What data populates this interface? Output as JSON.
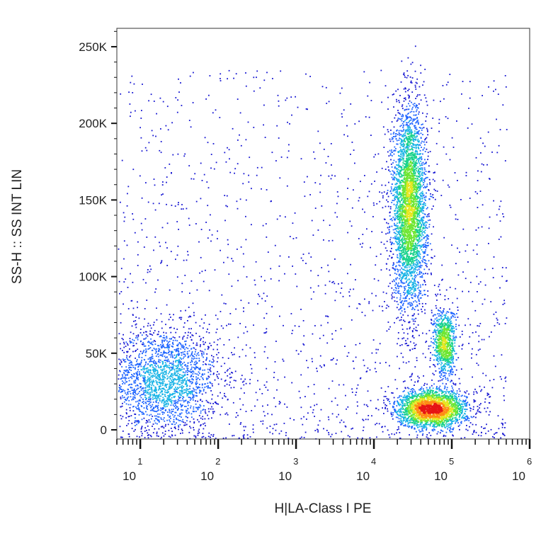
{
  "chart_data": {
    "type": "scatter",
    "title": "",
    "xlabel": "H|LA-Class I PE",
    "ylabel": "SS-H :: SS INT LIN",
    "x_scale": "log",
    "xlim": [
      5,
      1000000
    ],
    "ylim": [
      -6000,
      262000
    ],
    "x_ticks": [
      {
        "base": "10",
        "exp": "1",
        "value": 10
      },
      {
        "base": "10",
        "exp": "2",
        "value": 100
      },
      {
        "base": "10",
        "exp": "3",
        "value": 1000
      },
      {
        "base": "10",
        "exp": "4",
        "value": 10000
      },
      {
        "base": "10",
        "exp": "5",
        "value": 100000
      },
      {
        "base": "10",
        "exp": "6",
        "value": 1000000
      }
    ],
    "y_ticks": [
      {
        "label": "0",
        "value": 0
      },
      {
        "label": "50K",
        "value": 50000
      },
      {
        "label": "100K",
        "value": 100000
      },
      {
        "label": "150K",
        "value": 150000
      },
      {
        "label": "200K",
        "value": 200000
      },
      {
        "label": "250K",
        "value": 250000
      }
    ],
    "grid": false,
    "legend": "none",
    "colormap": [
      "#1414d2",
      "#1e64ff",
      "#19b4e6",
      "#19d28c",
      "#6ee632",
      "#e6e61e",
      "#ff8c14",
      "#e61414"
    ],
    "populations": [
      {
        "name": "",
        "x_center": 20,
        "y_center": 33000,
        "x_spread_decades": 0.35,
        "y_spread": 17000,
        "relative_density": 0.22
      },
      {
        "name": "",
        "x_center": 28000,
        "y_center": 145000,
        "x_spread_decades": 0.11,
        "y_spread": 32000,
        "relative_density": 0.4
      },
      {
        "name": "",
        "x_center": 80000,
        "y_center": 57000,
        "x_spread_decades": 0.07,
        "y_spread": 11000,
        "relative_density": 0.1
      },
      {
        "name": "",
        "x_center": 55000,
        "y_center": 14000,
        "x_spread_decades": 0.22,
        "y_spread": 6000,
        "relative_density": 0.28
      }
    ]
  }
}
